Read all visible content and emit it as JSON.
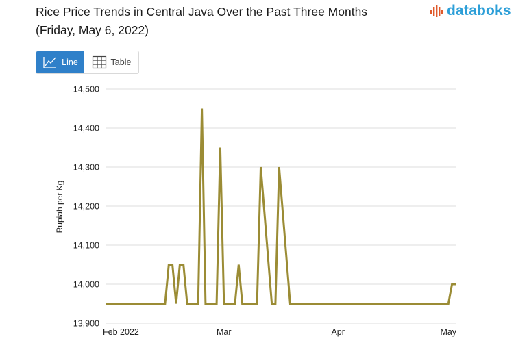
{
  "header": {
    "title_line1": "Rice Price Trends in Central Java Over the Past Three Months",
    "title_line2": "(Friday, May 6, 2022)"
  },
  "logo": {
    "text": "databoks",
    "icon": "bar-burst-icon",
    "color": "#2d9fd8",
    "icon_color": "#e05a2b"
  },
  "toggle": {
    "line_label": "Line",
    "line_icon": "line-chart-icon",
    "table_label": "Table",
    "table_icon": "table-grid-icon",
    "active": "line",
    "accent": "#2f80c9"
  },
  "chart_data": {
    "type": "line",
    "title": "Rice Price Trends in Central Java Over the Past Three Months",
    "subtitle": "(Friday, May 6, 2022)",
    "xlabel": "",
    "ylabel": "Rupiah per Kg",
    "ylim": [
      13900,
      14500
    ],
    "yticks": [
      13900,
      14000,
      14100,
      14200,
      14300,
      14400,
      14500
    ],
    "ytick_labels": [
      "13,900",
      "14,000",
      "14,100",
      "14,200",
      "14,300",
      "14,400",
      "14,500"
    ],
    "x_tick_labels": [
      {
        "label": "Feb 2022",
        "day": 4
      },
      {
        "label": "Mar",
        "day": 32
      },
      {
        "label": "Apr",
        "day": 63
      },
      {
        "label": "May",
        "day": 93
      }
    ],
    "grid": true,
    "series": [
      {
        "name": "Rupiah per Kg",
        "color": "#9b8c35",
        "x": [
          0,
          16,
          17,
          18,
          19,
          20,
          21,
          22,
          25,
          26,
          27,
          30,
          31,
          32,
          35,
          36,
          37,
          38,
          39,
          41,
          42,
          45,
          46,
          47,
          50,
          51,
          52,
          53,
          55,
          56,
          57,
          59,
          93,
          94,
          95
        ],
        "values": [
          13950,
          13950,
          14050,
          14050,
          13950,
          14050,
          14050,
          13950,
          13950,
          14450,
          13950,
          13950,
          14350,
          13950,
          13950,
          14050,
          13950,
          13950,
          13950,
          13950,
          14300,
          13950,
          13950,
          14300,
          13950,
          13950,
          13950,
          13950,
          13950,
          13950,
          13950,
          13950,
          13950,
          14000,
          14000
        ]
      }
    ]
  }
}
